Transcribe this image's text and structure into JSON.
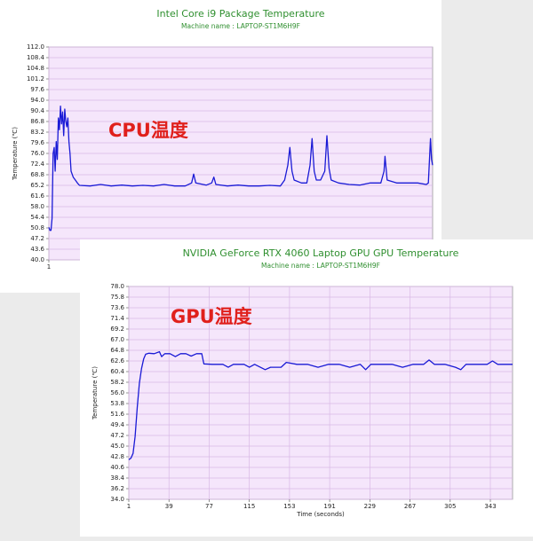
{
  "chart_data": [
    {
      "type": "line",
      "title": "Intel Core i9 Package Temperature",
      "subtitle": "Machine name : LAPTOP-ST1M6H9F",
      "y_label": "Temperature (℃)",
      "annotation": "CPU温度",
      "color": "#1a1ad6",
      "grid": true,
      "xlim": [
        1,
        364
      ],
      "xticks": [
        1
      ],
      "ylim": [
        40,
        112
      ],
      "yticks": [
        {
          "value": 40,
          "label": "40.0"
        },
        {
          "value": 43.6,
          "label": "43.6"
        },
        {
          "value": 47.2,
          "label": "47.2"
        },
        {
          "value": 50.8,
          "label": "50.8"
        },
        {
          "value": 54.4,
          "label": "54.4"
        },
        {
          "value": 58,
          "label": "58.0"
        },
        {
          "value": 61.6,
          "label": "61.6"
        },
        {
          "value": 65.2,
          "label": "65.2"
        },
        {
          "value": 68.8,
          "label": "68.8"
        },
        {
          "value": 72.4,
          "label": "72.4"
        },
        {
          "value": 76,
          "label": "76.0"
        },
        {
          "value": 79.6,
          "label": "79.6"
        },
        {
          "value": 83.2,
          "label": "83.2"
        },
        {
          "value": 86.8,
          "label": "86.8"
        },
        {
          "value": 90.4,
          "label": "90.4"
        },
        {
          "value": 94,
          "label": "94.0"
        },
        {
          "value": 97.6,
          "label": "97.6"
        },
        {
          "value": 101.2,
          "label": "101.2"
        },
        {
          "value": 104.8,
          "label": "104.8"
        },
        {
          "value": 108.4,
          "label": "108.4"
        },
        {
          "value": 112,
          "label": "112.0"
        }
      ],
      "x": [
        1,
        2,
        3,
        4,
        5,
        6,
        7,
        8,
        9,
        10,
        11,
        12,
        13,
        14,
        15,
        16,
        17,
        18,
        19,
        20,
        21,
        22,
        24,
        26,
        28,
        30,
        40,
        50,
        60,
        70,
        80,
        90,
        100,
        110,
        120,
        130,
        136,
        138,
        140,
        150,
        155,
        157,
        159,
        170,
        180,
        190,
        200,
        210,
        220,
        224,
        227,
        229,
        231,
        233,
        240,
        245,
        248,
        250,
        252,
        254,
        258,
        262,
        264,
        266,
        268,
        275,
        285,
        295,
        305,
        315,
        318,
        319,
        321,
        330,
        340,
        350,
        358,
        360,
        362,
        363,
        364
      ],
      "values": [
        51,
        50,
        50,
        54,
        76,
        78,
        70,
        80,
        74,
        88,
        84,
        92,
        86,
        90,
        82,
        91,
        87,
        85,
        88,
        80,
        76,
        70,
        68,
        67,
        66,
        65.2,
        65,
        65.5,
        65,
        65.3,
        65,
        65.2,
        65,
        65.5,
        65,
        65,
        66,
        69,
        66,
        65.3,
        66,
        68,
        65.5,
        65,
        65.3,
        65,
        65,
        65.2,
        65,
        67,
        72,
        78,
        70,
        67,
        66,
        66,
        72,
        81,
        70,
        67,
        67,
        70,
        82,
        71,
        67,
        66,
        65.5,
        65.3,
        66,
        66,
        70,
        75,
        67,
        66,
        66,
        66,
        65.5,
        66,
        81,
        74,
        72
      ]
    },
    {
      "type": "line",
      "title": "NVIDIA GeForce RTX 4060 Laptop GPU GPU Temperature",
      "subtitle": "Machine name : LAPTOP-ST1M6H9F",
      "y_label": "Temperature (℃)",
      "x_label": "Time (seconds)",
      "annotation": "GPU温度",
      "color": "#1a1ad6",
      "grid": true,
      "xlim": [
        1,
        364
      ],
      "xticks": [
        1,
        39,
        77,
        115,
        153,
        191,
        229,
        267,
        305,
        343
      ],
      "ylim": [
        34,
        78
      ],
      "yticks": [
        {
          "value": 34,
          "label": "34.0"
        },
        {
          "value": 36.2,
          "label": "36.2"
        },
        {
          "value": 38.4,
          "label": "38.4"
        },
        {
          "value": 40.6,
          "label": "40.6"
        },
        {
          "value": 42.8,
          "label": "42.8"
        },
        {
          "value": 45,
          "label": "45.0"
        },
        {
          "value": 47.2,
          "label": "47.2"
        },
        {
          "value": 49.4,
          "label": "49.4"
        },
        {
          "value": 51.6,
          "label": "51.6"
        },
        {
          "value": 53.8,
          "label": "53.8"
        },
        {
          "value": 56,
          "label": "56.0"
        },
        {
          "value": 58.2,
          "label": "58.2"
        },
        {
          "value": 60.4,
          "label": "60.4"
        },
        {
          "value": 62.6,
          "label": "62.6"
        },
        {
          "value": 64.8,
          "label": "64.8"
        },
        {
          "value": 67,
          "label": "67.0"
        },
        {
          "value": 69.2,
          "label": "69.2"
        },
        {
          "value": 71.4,
          "label": "71.4"
        },
        {
          "value": 73.6,
          "label": "73.6"
        },
        {
          "value": 75.8,
          "label": "75.8"
        },
        {
          "value": 78,
          "label": "78.0"
        }
      ],
      "x": [
        1,
        3,
        5,
        7,
        9,
        11,
        13,
        15,
        17,
        20,
        25,
        30,
        32,
        35,
        40,
        45,
        50,
        55,
        60,
        65,
        70,
        72,
        80,
        90,
        95,
        100,
        110,
        115,
        120,
        130,
        135,
        145,
        150,
        160,
        170,
        180,
        190,
        200,
        210,
        220,
        225,
        230,
        240,
        250,
        260,
        270,
        280,
        285,
        290,
        300,
        310,
        315,
        320,
        330,
        340,
        345,
        350,
        360,
        364
      ],
      "values": [
        42.2,
        42.5,
        43.5,
        47,
        53,
        58,
        61,
        63,
        64,
        64.2,
        64.1,
        64.5,
        63.5,
        64.1,
        64.1,
        63.5,
        64.1,
        64.1,
        63.6,
        64.1,
        64.1,
        62,
        61.9,
        61.9,
        61.3,
        61.9,
        61.9,
        61.3,
        61.9,
        60.8,
        61.3,
        61.3,
        62.3,
        61.9,
        61.9,
        61.3,
        61.9,
        61.9,
        61.3,
        61.9,
        60.8,
        61.9,
        61.9,
        61.9,
        61.3,
        61.9,
        61.9,
        62.8,
        61.9,
        61.9,
        61.3,
        60.8,
        61.9,
        61.9,
        61.9,
        62.6,
        61.9,
        61.9,
        61.9
      ]
    }
  ]
}
